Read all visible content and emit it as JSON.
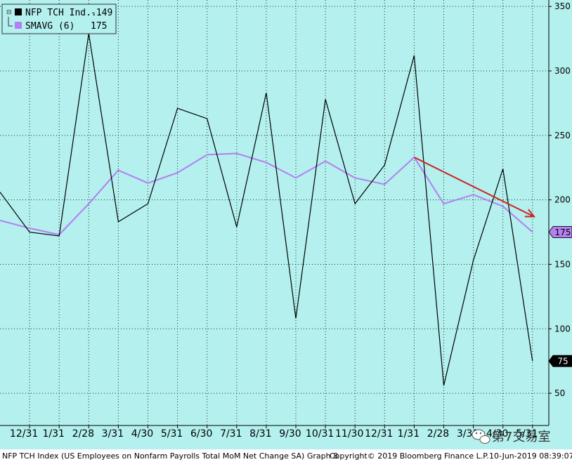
{
  "chart_data": {
    "type": "line",
    "ylim": [
      25,
      355
    ],
    "y_ticks": [
      50,
      100,
      150,
      200,
      250,
      300,
      350
    ],
    "x_ticks": [
      "12/31",
      "1/31",
      "2/28",
      "3/31",
      "4/30",
      "5/31",
      "6/30",
      "7/31",
      "8/31",
      "9/30",
      "10/31",
      "11/30",
      "12/31",
      "1/31",
      "2/28",
      "3/31",
      "4/30",
      "5/31"
    ],
    "grid": true,
    "series": [
      {
        "name": "NFP TCH Ind...",
        "legend_value": "-149",
        "color": "#000000",
        "values": [
          206,
          175,
          172,
          329,
          183,
          197,
          271,
          263,
          179,
          283,
          108,
          278,
          197,
          227,
          312,
          56,
          153,
          224,
          75
        ]
      },
      {
        "name": "SMAVG (6)",
        "legend_value": "175",
        "color": "#b47ff0",
        "values": [
          184,
          178,
          173,
          197,
          223,
          213,
          221,
          235,
          236,
          229,
          217,
          230,
          217,
          212,
          233,
          197,
          204,
          195,
          175
        ]
      }
    ],
    "last_value_labels": [
      {
        "text": "175",
        "bg": "#b47ff0"
      },
      {
        "text": "75",
        "bg": "#000000"
      }
    ],
    "trend_arrow": {
      "from": [
        14,
        233
      ],
      "to": [
        18.05,
        187
      ],
      "color": "#cc2222"
    },
    "plot_bg": "#b3f0ee"
  },
  "footer": {
    "left": "NFP TCH Index (US Employees on Nonfarm Payrolls Total MoM Net Change SA) Graph 8",
    "middle": "Copyright© 2019 Bloomberg Finance L.P.",
    "right": "10-Jun-2019 08:39:07"
  },
  "watermark": {
    "text": "第7交易室"
  }
}
